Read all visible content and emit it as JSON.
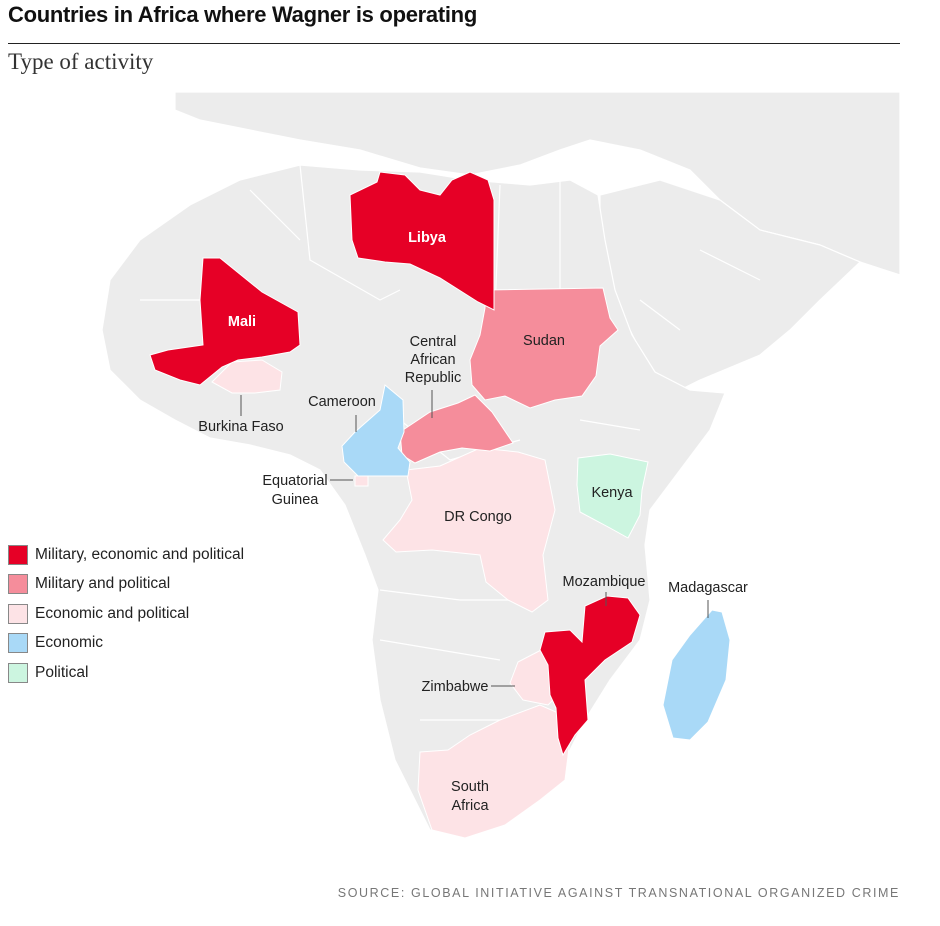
{
  "title": "Countries in Africa where Wagner is operating",
  "subtitle": "Type of activity",
  "source": "SOURCE: GLOBAL INITIATIVE AGAINST TRANSNATIONAL ORGANIZED CRIME",
  "colors": {
    "background_land": "#ececec",
    "military_economic_political": "#e60026",
    "military_political": "#f58d9b",
    "economic_political": "#fde3e6",
    "economic": "#a9d9f7",
    "political": "#ccf5e0"
  },
  "legend": [
    {
      "label": "Military, economic and political",
      "color": "#e60026"
    },
    {
      "label": "Military and political",
      "color": "#f58d9b"
    },
    {
      "label": "Economic and political",
      "color": "#fde3e6"
    },
    {
      "label": "Economic",
      "color": "#a9d9f7"
    },
    {
      "label": "Political",
      "color": "#ccf5e0"
    }
  ],
  "countries": {
    "libya": {
      "name": "Libya",
      "activity": "Military, economic and political"
    },
    "mali": {
      "name": "Mali",
      "activity": "Military, economic and political"
    },
    "mozambique": {
      "name": "Mozambique",
      "activity": "Military, economic and political"
    },
    "sudan": {
      "name": "Sudan",
      "activity": "Military and political"
    },
    "car": {
      "name_lines": [
        "Central",
        "African",
        "Republic"
      ],
      "activity": "Military and political"
    },
    "burkina_faso": {
      "name": "Burkina Faso",
      "activity": "Economic and political"
    },
    "equatorial_guinea": {
      "name_lines": [
        "Equatorial",
        "Guinea"
      ],
      "activity": "Economic and political"
    },
    "dr_congo": {
      "name": "DR Congo",
      "activity": "Economic and political"
    },
    "zimbabwe": {
      "name": "Zimbabwe",
      "activity": "Economic and political"
    },
    "south_africa": {
      "name_lines": [
        "South",
        "Africa"
      ],
      "activity": "Economic and political"
    },
    "cameroon": {
      "name": "Cameroon",
      "activity": "Economic"
    },
    "madagascar": {
      "name": "Madagascar",
      "activity": "Economic"
    },
    "kenya": {
      "name": "Kenya",
      "activity": "Political"
    }
  }
}
